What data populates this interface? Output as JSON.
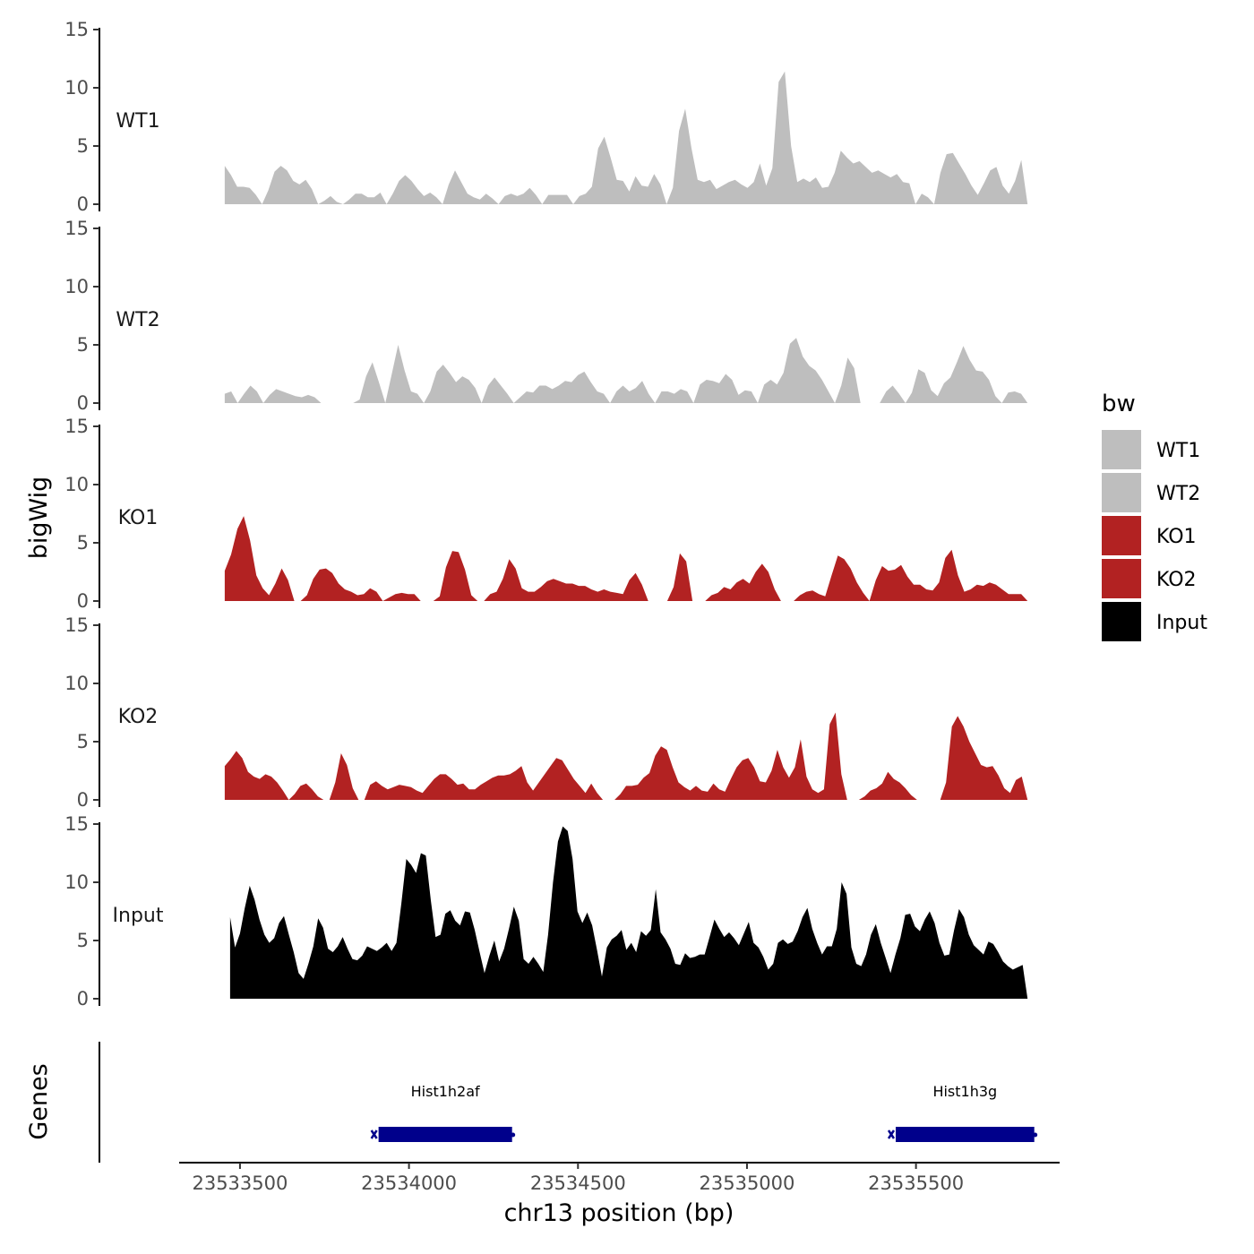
{
  "chart_data": {
    "type": "area",
    "ylabel": "bigWig",
    "xlabel": "chr13 position (bp)",
    "ylim": [
      0,
      15
    ],
    "yticks": [
      0,
      5,
      10,
      15
    ],
    "xlim": [
      23533320,
      23535925
    ],
    "xticks": [
      23533500,
      23534000,
      23534500,
      23535000,
      23535500
    ],
    "xtick_labels": [
      "23533500",
      "23534000",
      "23534500",
      "23535000",
      "23535500"
    ],
    "xrange_data": [
      23533455,
      23535830
    ],
    "tracks": [
      {
        "name": "WT1",
        "color": "#BEBEBE",
        "values": [
          3.3,
          2.5,
          1.5,
          1.5,
          1.4,
          0.8,
          0,
          1.2,
          2.8,
          3.3,
          2.9,
          2.0,
          1.7,
          2.1,
          1.3,
          0,
          0.3,
          0.7,
          0.2,
          0,
          0.4,
          0.9,
          0.9,
          0.6,
          0.6,
          1.0,
          0,
          0.9,
          2.0,
          2.5,
          2.0,
          1.3,
          0.7,
          1.0,
          0.6,
          0,
          1.7,
          2.9,
          1.9,
          0.9,
          0.6,
          0.4,
          0.9,
          0.5,
          0,
          0.7,
          0.9,
          0.7,
          0.9,
          1.4,
          0.8,
          0,
          0.8,
          0.8,
          0.8,
          0.8,
          0,
          0.7,
          0.9,
          1.5,
          4.8,
          5.8,
          4.0,
          2.1,
          2.0,
          1.1,
          2.4,
          1.6,
          1.5,
          2.6,
          1.7,
          0,
          1.4,
          6.3,
          8.2,
          4.8,
          2.1,
          1.9,
          2.1,
          1.3,
          1.6,
          1.9,
          2.1,
          1.7,
          1.4,
          1.9,
          3.5,
          1.6,
          3.1,
          10.5,
          11.4,
          5.0,
          1.9,
          2.2,
          1.9,
          2.3,
          1.4,
          1.5,
          2.7,
          4.6,
          4.0,
          3.5,
          3.7,
          3.2,
          2.7,
          2.9,
          2.6,
          2.3,
          2.6,
          1.9,
          1.8,
          0,
          0.9,
          0.6,
          0,
          2.7,
          4.3,
          4.4,
          3.5,
          2.6,
          1.6,
          0.8,
          1.8,
          2.9,
          3.2,
          1.6,
          0.9,
          2.0,
          3.8,
          0
        ]
      },
      {
        "name": "WT2",
        "color": "#BEBEBE",
        "values": [
          0.8,
          1.0,
          0,
          0.8,
          1.5,
          1.0,
          0,
          0.7,
          1.2,
          1.0,
          0.8,
          0.6,
          0.5,
          0.7,
          0.5,
          0,
          0,
          0,
          0,
          0,
          0,
          0.3,
          2.3,
          3.5,
          1.8,
          0,
          2.5,
          5.0,
          2.8,
          1.0,
          0.8,
          0,
          1.0,
          2.7,
          3.3,
          2.6,
          1.8,
          2.3,
          2.0,
          1.3,
          0,
          1.5,
          2.2,
          1.5,
          0.8,
          0,
          0.5,
          1.0,
          0.9,
          1.5,
          1.5,
          1.2,
          1.5,
          1.9,
          1.8,
          2.4,
          2.7,
          1.8,
          1.0,
          0.8,
          0,
          1.0,
          1.5,
          1.0,
          1.3,
          1.9,
          0.8,
          0,
          1.0,
          1.0,
          0.8,
          1.2,
          1.0,
          0,
          1.6,
          2.0,
          1.9,
          1.7,
          2.5,
          2.0,
          0.7,
          1.1,
          1.0,
          0,
          1.6,
          2.0,
          1.6,
          2.6,
          5.1,
          5.6,
          4.0,
          3.2,
          2.8,
          2.0,
          1.0,
          0,
          1.5,
          3.9,
          3.0,
          0,
          0,
          0,
          0,
          1.0,
          1.5,
          0.8,
          0,
          0.9,
          2.9,
          2.6,
          1.1,
          0.6,
          1.7,
          2.2,
          3.5,
          4.9,
          3.7,
          2.8,
          2.7,
          2.0,
          0.6,
          0,
          0.9,
          1.0,
          0.8,
          0
        ]
      },
      {
        "name": "KO1",
        "color": "#B22222",
        "values": [
          2.6,
          4.0,
          6.2,
          7.3,
          5.2,
          2.2,
          1.1,
          0.5,
          1.5,
          2.8,
          1.8,
          0,
          0,
          0.5,
          1.9,
          2.7,
          2.8,
          2.4,
          1.5,
          1.0,
          0.8,
          0.5,
          0.6,
          1.1,
          0.8,
          0,
          0.3,
          0.6,
          0.7,
          0.6,
          0.6,
          0,
          0,
          0,
          0.4,
          2.9,
          4.3,
          4.2,
          2.7,
          0.5,
          0,
          0,
          0.6,
          0.8,
          1.9,
          3.6,
          2.8,
          1.1,
          0.8,
          0.8,
          1.2,
          1.7,
          1.9,
          1.7,
          1.5,
          1.5,
          1.3,
          1.3,
          1.0,
          0.8,
          1.0,
          0.8,
          0.7,
          0.6,
          1.8,
          2.4,
          1.4,
          0,
          0,
          0,
          0,
          1.2,
          4.1,
          3.4,
          0,
          0,
          0,
          0.5,
          0.7,
          1.2,
          1.0,
          1.6,
          1.9,
          1.5,
          2.5,
          3.2,
          2.5,
          1.0,
          0,
          0,
          0,
          0.5,
          0.8,
          0.9,
          0.6,
          0.4,
          2.2,
          3.9,
          3.6,
          2.8,
          1.6,
          0.7,
          0,
          1.8,
          3.0,
          2.6,
          2.7,
          3.1,
          2.1,
          1.4,
          1.4,
          1.0,
          0.9,
          1.6,
          3.7,
          4.4,
          2.2,
          0.8,
          1.0,
          1.4,
          1.3,
          1.6,
          1.4,
          1.0,
          0.6,
          0.6,
          0.6,
          0
        ]
      },
      {
        "name": "KO2",
        "color": "#B22222",
        "values": [
          2.9,
          3.5,
          4.2,
          3.6,
          2.4,
          2.0,
          1.8,
          2.2,
          2.0,
          1.5,
          0.8,
          0,
          0.5,
          1.2,
          1.4,
          0.9,
          0.3,
          0,
          0,
          1.5,
          4.0,
          3.0,
          1.0,
          0,
          0,
          1.3,
          1.6,
          1.2,
          0.9,
          1.1,
          1.3,
          1.2,
          1.1,
          0.8,
          0.6,
          1.2,
          1.8,
          2.2,
          2.2,
          1.8,
          1.3,
          1.4,
          0.9,
          0.9,
          1.3,
          1.6,
          1.9,
          2.1,
          2.1,
          2.2,
          2.5,
          2.9,
          1.5,
          0.8,
          1.5,
          2.2,
          2.9,
          3.6,
          3.4,
          2.6,
          1.8,
          1.2,
          0.6,
          1.4,
          0.6,
          0,
          0,
          0,
          0.5,
          1.2,
          1.2,
          1.3,
          1.9,
          2.3,
          3.8,
          4.6,
          4.3,
          2.8,
          1.5,
          1.1,
          0.8,
          1.2,
          0.8,
          0.7,
          1.4,
          0.9,
          0.7,
          1.8,
          2.8,
          3.4,
          3.6,
          2.8,
          1.6,
          1.5,
          2.5,
          4.3,
          2.8,
          1.9,
          2.8,
          5.2,
          2.0,
          0.9,
          0.6,
          0.9,
          6.5,
          7.5,
          2.2,
          0,
          0,
          0,
          0.3,
          0.8,
          1.0,
          1.4,
          2.4,
          1.8,
          1.5,
          1.0,
          0.4,
          0,
          0,
          0,
          0,
          0,
          1.5,
          6.3,
          7.2,
          6.3,
          5.0,
          4.0,
          3.0,
          2.8,
          2.9,
          2.1,
          1.0,
          0.6,
          1.7,
          2.0,
          0
        ]
      },
      {
        "name": "Input",
        "color": "#000000",
        "values": [
          7.0,
          4.4,
          5.6,
          7.8,
          9.7,
          8.5,
          6.8,
          5.5,
          4.8,
          5.2,
          6.5,
          7.1,
          5.5,
          4.0,
          2.2,
          1.7,
          3.0,
          4.5,
          6.9,
          6.1,
          4.3,
          4.0,
          4.5,
          5.3,
          4.3,
          3.4,
          3.3,
          3.7,
          4.5,
          4.3,
          4.1,
          4.4,
          4.8,
          4.1,
          4.8,
          8.2,
          12.0,
          11.5,
          10.8,
          12.5,
          12.3,
          8.5,
          5.3,
          5.5,
          7.3,
          7.6,
          6.7,
          6.3,
          7.5,
          7.4,
          5.9,
          4.0,
          2.2,
          3.7,
          5.0,
          3.2,
          4.3,
          6.0,
          7.9,
          6.7,
          3.4,
          3.0,
          3.6,
          3.0,
          2.3,
          5.5,
          10.0,
          13.5,
          14.8,
          14.4,
          12.0,
          7.5,
          6.5,
          7.4,
          6.3,
          4.2,
          1.9,
          4.4,
          5.1,
          5.4,
          5.9,
          4.2,
          4.8,
          4.0,
          5.8,
          5.4,
          5.9,
          9.4,
          5.7,
          5.1,
          4.3,
          3.0,
          2.9,
          3.9,
          3.5,
          3.6,
          3.8,
          3.8,
          5.3,
          6.8,
          6.0,
          5.3,
          5.7,
          5.2,
          4.6,
          5.6,
          6.6,
          4.8,
          4.4,
          3.6,
          2.5,
          3.0,
          4.8,
          5.1,
          4.7,
          4.9,
          5.8,
          7.0,
          7.8,
          6.0,
          4.8,
          3.8,
          4.5,
          4.5,
          6.0,
          10.0,
          9.0,
          4.4,
          3.0,
          2.8,
          3.8,
          5.5,
          6.4,
          4.8,
          3.5,
          2.2,
          3.8,
          5.2,
          7.2,
          7.3,
          6.2,
          5.8,
          6.8,
          7.5,
          6.5,
          4.8,
          3.7,
          3.8,
          5.9,
          7.7,
          7.0,
          5.5,
          4.6,
          4.2,
          3.8,
          4.9,
          4.7,
          4.0,
          3.2,
          2.8,
          2.5,
          2.7,
          2.9,
          0
        ]
      }
    ],
    "genes_track": {
      "label": "Genes",
      "genes": [
        {
          "name": "Hist1h2af",
          "start": 23533910,
          "end": 23534305,
          "color": "#00008B"
        },
        {
          "name": "Hist1h3g",
          "start": 23535440,
          "end": 23535850,
          "color": "#00008B"
        }
      ]
    },
    "legend": {
      "title": "bw",
      "placement": "right",
      "items": [
        {
          "label": "WT1",
          "color": "#BEBEBE"
        },
        {
          "label": "WT2",
          "color": "#BEBEBE"
        },
        {
          "label": "KO1",
          "color": "#B22222"
        },
        {
          "label": "KO2",
          "color": "#B22222"
        },
        {
          "label": "Input",
          "color": "#000000"
        }
      ]
    }
  }
}
